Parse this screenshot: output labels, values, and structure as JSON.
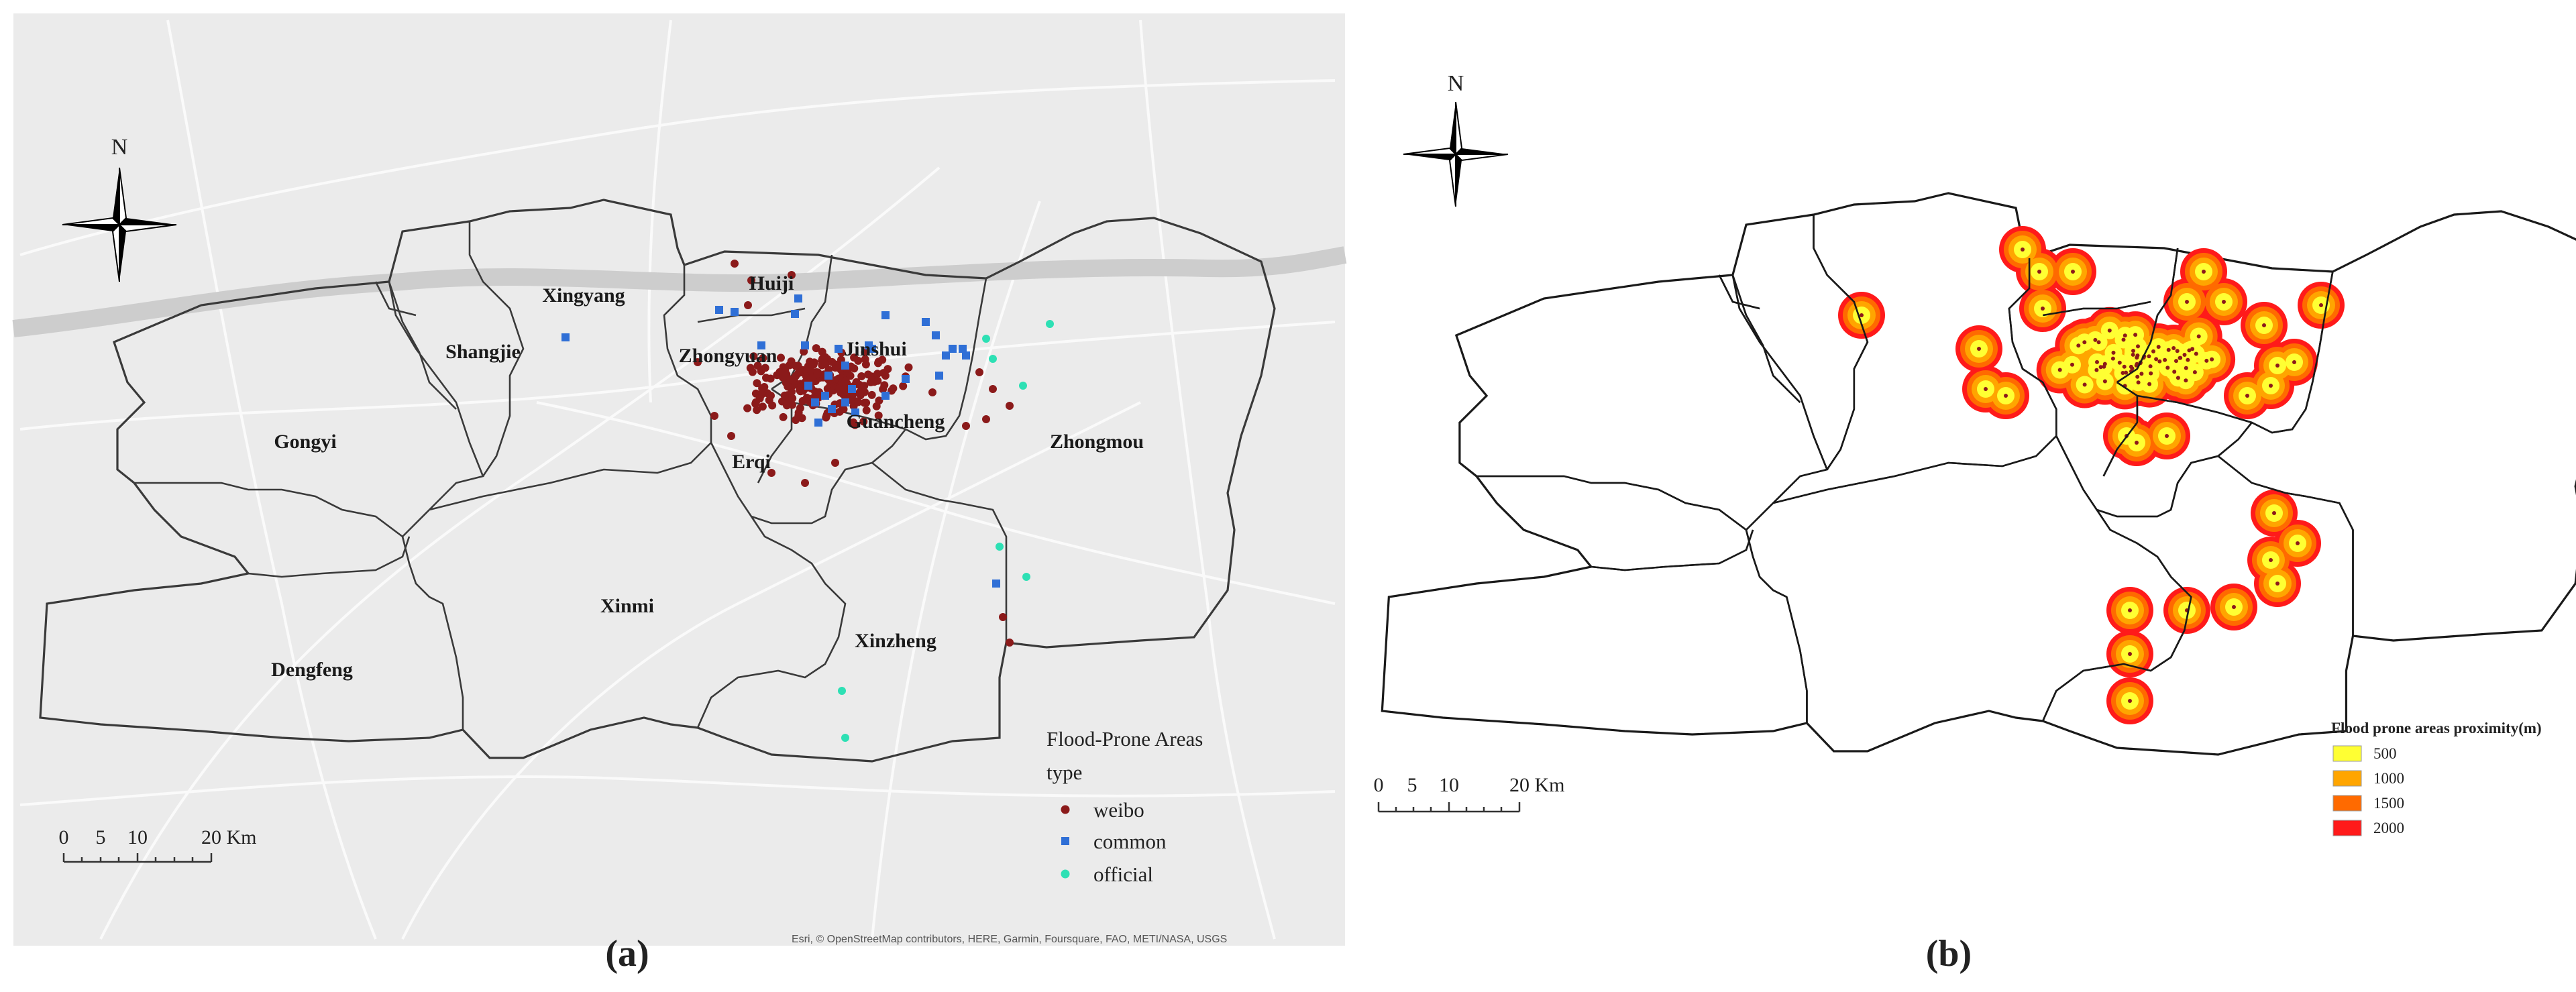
{
  "colors": {
    "basemap": "#ebebeb",
    "road": "#fafafa",
    "river": "#cdcdcd",
    "weibo": "#8b1a1a",
    "common": "#2f6fd6",
    "official": "#2de0b4",
    "buffer_500": "#ffff33",
    "buffer_1000": "#ffa500",
    "buffer_1500": "#ff6a00",
    "buffer_2000": "#ff1a1a"
  },
  "panel_a": {
    "caption": "(a)",
    "north_label": "N",
    "districts": {
      "xingyang": "Xingyang",
      "shangjie": "Shangjie",
      "huiji": "Huiji",
      "zhongyuan": "Zhongyuan",
      "jinshui": "Jinshui",
      "gongyi": "Gongyi",
      "guancheng": "Guancheng",
      "erqi": "Erqi",
      "zhongmou": "Zhongmou",
      "xinmi": "Xinmi",
      "xinzheng": "Xinzheng",
      "dengfeng": "Dengfeng"
    },
    "legend": {
      "title": "Flood-Prone Areas",
      "subtitle": "type",
      "items": [
        "weibo",
        "common",
        "official"
      ]
    },
    "scale": {
      "ticks": [
        "0",
        "5",
        "10"
      ],
      "end_label": "20 Km"
    },
    "credit": "Esri, © OpenStreetMap contributors, HERE, Garmin, Foursquare, FAO, METI/NASA, USGS"
  },
  "panel_b": {
    "caption": "(b)",
    "north_label": "N",
    "legend": {
      "title": "Flood prone areas proximity(m)",
      "items": [
        "500",
        "1000",
        "1500",
        "2000"
      ]
    },
    "scale": {
      "ticks": [
        "0",
        "5",
        "10"
      ],
      "end_label": "20 Km"
    }
  }
}
